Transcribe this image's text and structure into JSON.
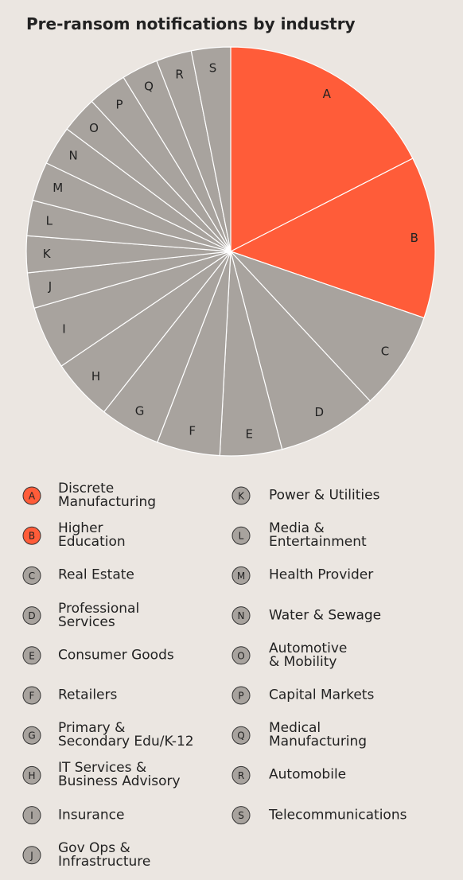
{
  "chart_data": {
    "type": "pie",
    "title": "Pre-ransom notifications by industry",
    "labels": [
      "A",
      "B",
      "C",
      "D",
      "E",
      "F",
      "G",
      "H",
      "I",
      "J",
      "K",
      "L",
      "M",
      "N",
      "O",
      "P",
      "Q",
      "R",
      "S"
    ],
    "categories": [
      "Discrete\nManufacturing",
      "Higher\nEducation",
      "Real Estate",
      "Professional\nServices",
      "Consumer Goods",
      "Retailers",
      "Primary &\nSecondary Edu/K-12",
      "IT Services &\nBusiness Advisory",
      "Insurance",
      "Gov Ops &\nInfrastructure",
      "Power & Utilities",
      "Media &\nEntertainment",
      "Health Provider",
      "Water & Sewage",
      "Automotive\n& Mobility",
      "Capital Markets",
      "Medical\nManufacturing",
      "Automobile",
      "Telecommunications"
    ],
    "values": [
      17.5,
      12.8,
      7.8,
      7.9,
      4.9,
      5,
      4.8,
      4.9,
      5,
      2.8,
      2.9,
      2.8,
      3.1,
      3.1,
      2.9,
      3.1,
      2.9,
      2.8,
      3.1
    ],
    "colors": [
      "#ff5c39",
      "#ff5c39",
      "#a8a39e",
      "#a8a39e",
      "#a8a39e",
      "#a8a39e",
      "#a8a39e",
      "#a8a39e",
      "#a8a39e",
      "#a8a39e",
      "#a8a39e",
      "#a8a39e",
      "#a8a39e",
      "#a8a39e",
      "#a8a39e",
      "#a8a39e",
      "#a8a39e",
      "#a8a39e",
      "#a8a39e"
    ]
  }
}
